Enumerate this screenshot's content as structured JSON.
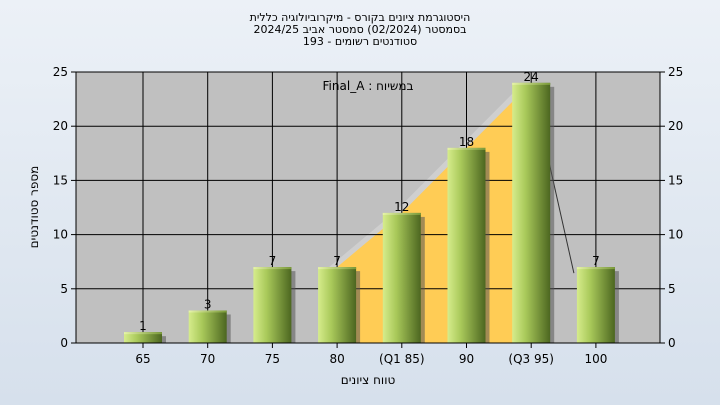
{
  "header": {
    "title_line1": "היסטוגרמת ציונים בקורס - מיקרוביולוגיה כללית",
    "title_line2": "בסמסטר  (02/2024)  סמסטר אביב 2024/25",
    "title_line3": "סטודנטים רשומים - 193"
  },
  "chart_data": {
    "type": "bar",
    "categories": [
      "65",
      "70",
      "75",
      "80",
      "(Q1 85)",
      "90",
      "(Q3 95)",
      "100"
    ],
    "series": [
      {
        "values": [
          1,
          3,
          7,
          7,
          12,
          18,
          24,
          7
        ]
      }
    ],
    "annotation": "במשיוח : Final_A",
    "xlabel": "טווח ציונים",
    "ylabel": "מספר סטודנטים",
    "ylim": [
      0,
      25
    ],
    "yticks": [
      0,
      5,
      10,
      15,
      20,
      25
    ],
    "grid": true,
    "right_axis": true,
    "colors": {
      "plot_bg": "#c0c0c0",
      "bar_light": "#c8e07a",
      "bar_dark": "#4f6a1e",
      "area_fill": "#ffcc55",
      "area_shadow": "#d0d0d0",
      "page_bg": "#e3eaf3"
    },
    "highlight_area_between": [
      "80",
      "(Q3 95)"
    ]
  }
}
